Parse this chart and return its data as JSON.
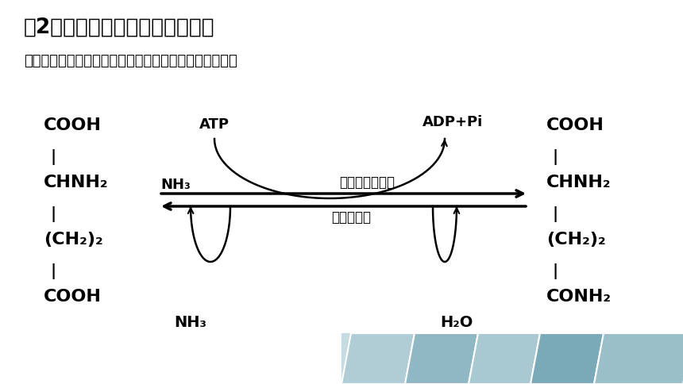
{
  "title": "（2）谷氨酰胺和天冬酰胺的生成",
  "subtitle": "谷氨酰胺的合成与分解是分别由不同酶催化的不可逆反应",
  "bg_color": "#ffffff",
  "title_color": "#000000",
  "subtitle_color": "#000000",
  "diagram_color": "#000000",
  "footer_color": "#b8d4dc",
  "left_structure": [
    "COOH",
    "-",
    "CHNH₂",
    "-",
    "(CH₂)₂",
    "-",
    "COOH"
  ],
  "right_structure": [
    "COOH",
    "-",
    "CHNH₂",
    "-",
    "(CH₂)₂",
    "-",
    "CONH₂"
  ],
  "top_left_label": "ATP",
  "top_right_label": "ADP+Pi",
  "mid_left_label": "NH₃",
  "mid_enzyme_top": "谷氨酰胺合成醂",
  "mid_enzyme_bottom": "谷氨酰胺醂",
  "bot_left_label": "NH₃",
  "bot_right_label": "H₂O"
}
